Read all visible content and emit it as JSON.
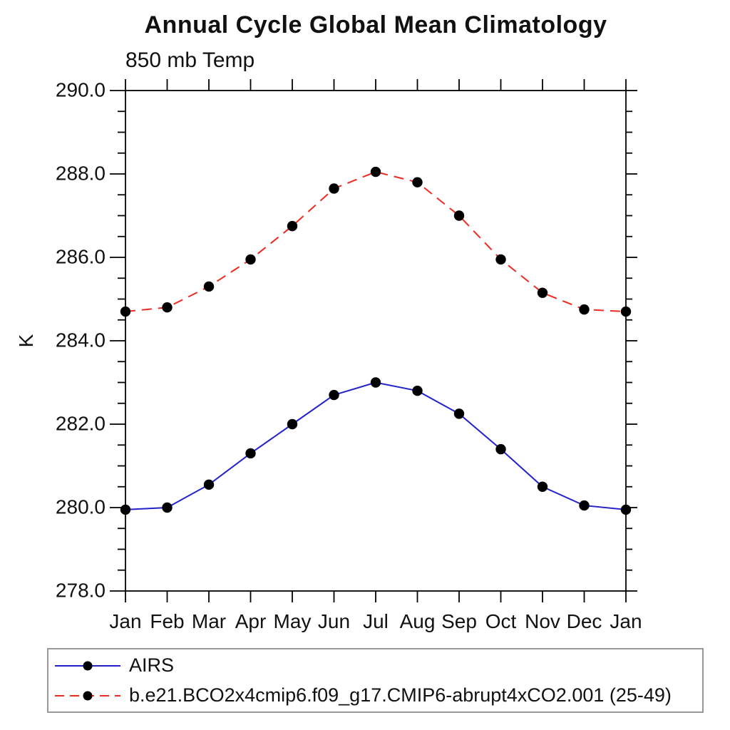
{
  "chart_data": {
    "type": "line",
    "title": "Annual Cycle Global Mean Climatology",
    "subtitle": "850 mb Temp",
    "ylabel": "K",
    "xlabel": "",
    "categories": [
      "Jan",
      "Feb",
      "Mar",
      "Apr",
      "May",
      "Jun",
      "Jul",
      "Aug",
      "Sep",
      "Oct",
      "Nov",
      "Dec",
      "Jan"
    ],
    "ylim": [
      278.0,
      290.0
    ],
    "y_major_step": 2.0,
    "y_minor_step": 0.5,
    "y_tick_decimals": 1,
    "grid": false,
    "legend_position": "bottom-left-box",
    "axis_color": "#000000",
    "marker_color": "#000000",
    "series": [
      {
        "name": "AIRS",
        "color": "#2222cc",
        "line_style": "solid",
        "marker": "circle",
        "values": [
          279.95,
          280.0,
          280.55,
          281.3,
          282.0,
          282.7,
          283.0,
          282.8,
          282.25,
          281.4,
          280.5,
          280.05,
          279.95
        ]
      },
      {
        "name": "b.e21.BCO2x4cmip6.f09_g17.CMIP6-abrupt4xCO2.001 (25-49)",
        "color": "#ee2a21",
        "line_style": "dashed",
        "marker": "circle",
        "values": [
          284.7,
          284.8,
          285.3,
          285.95,
          286.75,
          287.65,
          288.05,
          287.8,
          287.0,
          285.95,
          285.15,
          284.75,
          284.7
        ]
      }
    ]
  }
}
